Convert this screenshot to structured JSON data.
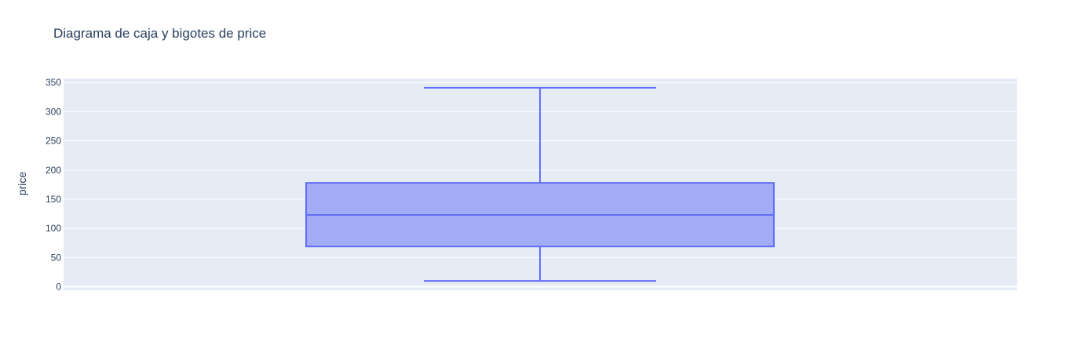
{
  "colors": {
    "plot_bg": "#e5ecf6",
    "grid": "#ffffff",
    "box_fill": "#a3acf6",
    "box_line": "#636efa",
    "text": "#2a3f5f"
  },
  "chart_data": {
    "type": "box",
    "title": "Diagrama de caja y bigotes de price",
    "xlabel": "",
    "ylabel": "price",
    "ylim": [
      -6,
      357
    ],
    "yticks": [
      0,
      50,
      100,
      150,
      200,
      250,
      300,
      350
    ],
    "grid": true,
    "series": [
      {
        "min": 10,
        "q1": 69,
        "median": 123,
        "q3": 178,
        "max": 341
      }
    ]
  }
}
